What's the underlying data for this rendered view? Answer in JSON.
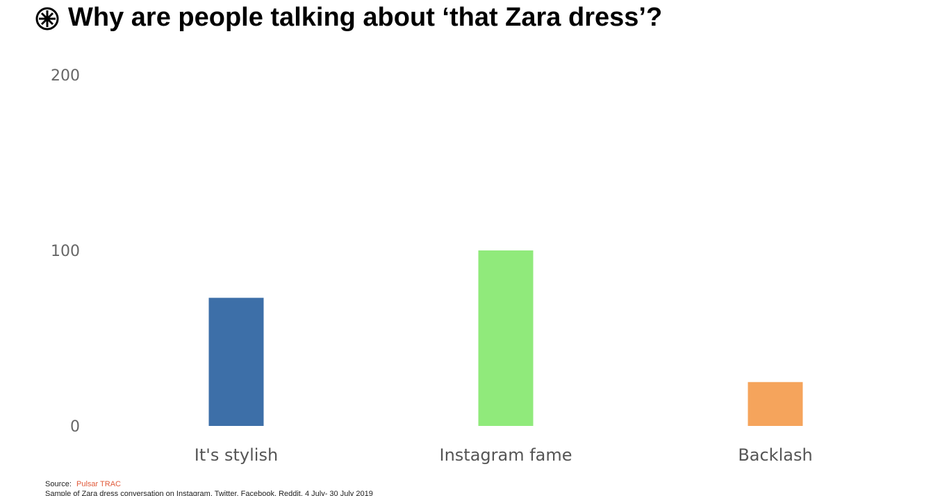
{
  "chart_data": {
    "type": "bar",
    "title": "Why are people talking about ‘that Zara dress’?",
    "categories": [
      "It's stylish",
      "Instagram fame",
      "Backlash"
    ],
    "values": [
      73,
      100,
      25
    ],
    "colors": [
      "#3d6fa8",
      "#90ea7b",
      "#f5a45c"
    ],
    "ylim": [
      0,
      200
    ],
    "yticks": [
      0,
      100,
      200
    ],
    "grid": false,
    "source_label": "Source:",
    "source_name": "Pulsar TRAC",
    "note": "Sample of Zara dress conversation on Instagram, Twitter, Facebook, Reddit, 4 July- 30 July 2019"
  }
}
